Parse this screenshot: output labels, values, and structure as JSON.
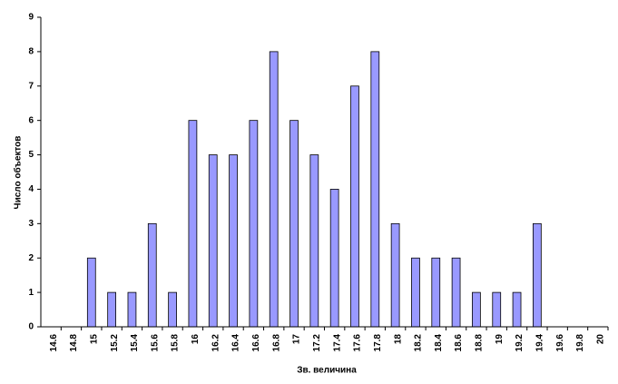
{
  "chart_data": {
    "type": "bar",
    "x_label": "Зв. величина",
    "y_label": "Число объектов",
    "categories": [
      "14.6",
      "14.8",
      "15",
      "15.2",
      "15.4",
      "15.6",
      "15.8",
      "16",
      "16.2",
      "16.4",
      "16.6",
      "16.8",
      "17",
      "17.2",
      "17.4",
      "17.6",
      "17.8",
      "18",
      "18.2",
      "18.4",
      "18.6",
      "18.8",
      "19",
      "19.2",
      "19.4",
      "19.6",
      "19.8",
      "20"
    ],
    "values": [
      0,
      0,
      2,
      1,
      1,
      3,
      1,
      6,
      5,
      5,
      6,
      8,
      6,
      5,
      4,
      7,
      8,
      3,
      2,
      2,
      2,
      1,
      1,
      1,
      3,
      0,
      0,
      0
    ],
    "color": "#9999ff",
    "ylim": [
      0,
      9
    ],
    "yticks": [
      0,
      1,
      2,
      3,
      4,
      5,
      6,
      7,
      8,
      9
    ],
    "grid": false
  }
}
